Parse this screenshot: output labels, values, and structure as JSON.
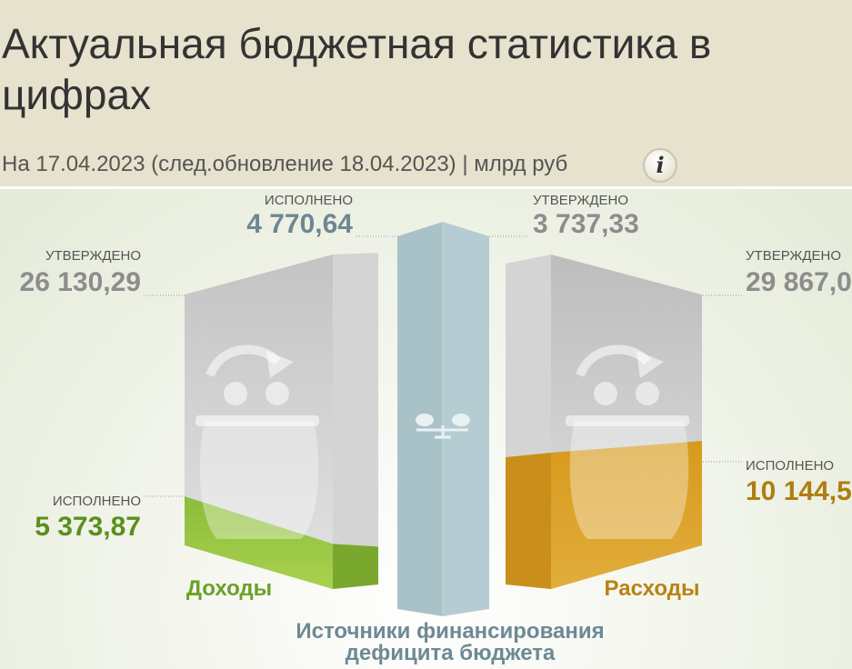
{
  "header": {
    "title": "Актуальная бюджетная статистика в цифрах",
    "title_line1": "Актуальная бюджетная статистика в",
    "title_line2": "цифрах",
    "subtitle": "На 17.04.2023 (след.обновление 18.04.2023) | млрд руб",
    "info_icon": "info-icon",
    "info_glyph": "i"
  },
  "chart_data": {
    "type": "bar",
    "unit": "млрд руб",
    "categories": [
      "Доходы",
      "Источники финансирования дефицита бюджета",
      "Расходы"
    ],
    "series": [
      {
        "name": "УТВЕРЖДЕНО",
        "values": [
          26130.29,
          3737.33,
          29867.0
        ]
      },
      {
        "name": "ИСПОЛНЕНО",
        "values": [
          5373.87,
          4770.64,
          10144.5
        ]
      }
    ],
    "colors": {
      "revenue": "#8ab53a",
      "expense": "#d9a22f",
      "deficit": "#a9c3ca",
      "approved": "#cfcfcf"
    }
  },
  "labels": {
    "revenue": {
      "approved_caption": "УТВЕРЖДЕНО",
      "approved_value": "26 130,29",
      "executed_caption": "ИСПОЛНЕНО",
      "executed_value": "5 373,87",
      "name": "Доходы"
    },
    "deficit": {
      "executed_caption": "ИСПОЛНЕНО",
      "executed_value": "4 770,64",
      "approved_caption": "УТВЕРЖДЕНО",
      "approved_value": "3 737,33",
      "name_line1": "Источники финансирования",
      "name_line2": "дефицита бюджета"
    },
    "expense": {
      "approved_caption": "УТВЕРЖДЕНО",
      "approved_value": "29 867,0",
      "executed_caption": "ИСПОЛНЕНО",
      "executed_value": "10 144,5",
      "name": "Расходы"
    }
  }
}
